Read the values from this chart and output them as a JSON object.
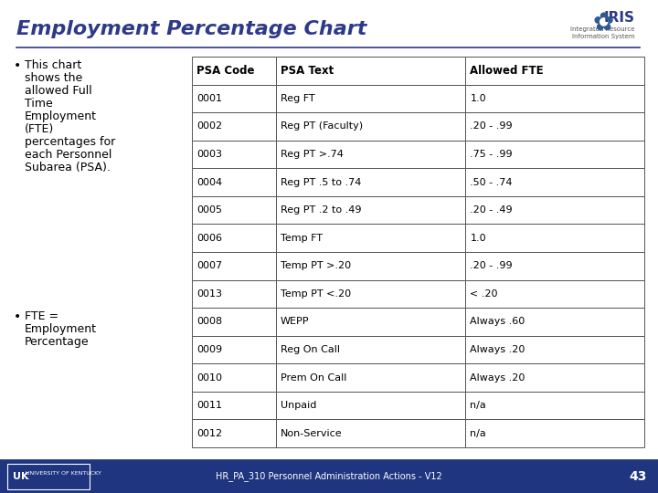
{
  "title": "Employment Percentage Chart",
  "title_color": "#2E3A87",
  "title_fontsize": 16,
  "table_headers": [
    "PSA Code",
    "PSA Text",
    "Allowed FTE"
  ],
  "table_rows": [
    [
      "0001",
      "Reg FT",
      "1.0"
    ],
    [
      "0002",
      "Reg PT (Faculty)",
      ".20 - .99"
    ],
    [
      "0003",
      "Reg PT >.74",
      ".75 - .99"
    ],
    [
      "0004",
      "Reg PT .5 to .74",
      ".50 - .74"
    ],
    [
      "0005",
      "Reg PT .2 to .49",
      ".20 - .49"
    ],
    [
      "0006",
      "Temp FT",
      "1.0"
    ],
    [
      "0007",
      "Temp PT >.20",
      ".20 - .99"
    ],
    [
      "0013",
      "Temp PT <.20",
      "< .20"
    ],
    [
      "0008",
      "WEPP",
      "Always .60"
    ],
    [
      "0009",
      "Reg On Call",
      "Always .20"
    ],
    [
      "0010",
      "Prem On Call",
      "Always .20"
    ],
    [
      "0011",
      "Unpaid",
      "n/a"
    ],
    [
      "0012",
      "Non-Service",
      "n/a"
    ]
  ],
  "header_text_color": "#000000",
  "row_text_color": "#000000",
  "table_border_color": "#555555",
  "bg_color": "#FFFFFF",
  "footer_text": "HR_PA_310 Personnel Administration Actions - V12",
  "footer_page": "43",
  "footer_bg": "#1F3580",
  "divider_color": "#2E3A87",
  "bullet1_lines": [
    "This chart",
    "shows the",
    "allowed Full",
    "Time",
    "Employment",
    "(FTE)",
    "percentages for",
    "each Personnel",
    "Subarea (PSA)."
  ],
  "bullet2_lines": [
    "FTE =",
    "Employment",
    "Percentage"
  ],
  "body_font_size": 9,
  "table_font_size": 8,
  "table_header_font_size": 8.5
}
